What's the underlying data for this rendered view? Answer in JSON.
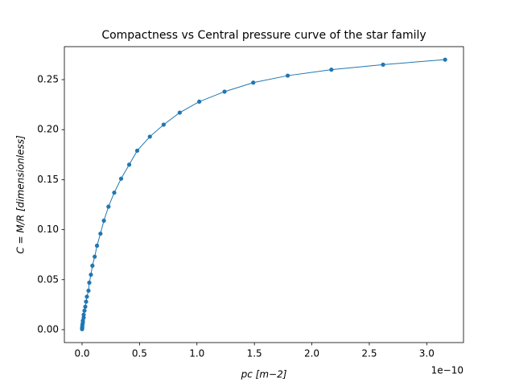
{
  "chart_data": {
    "type": "line",
    "title": "Compactness vs Central pressure curve of the star family",
    "xlabel": "pc [m−2]",
    "ylabel": "C = M/R [dimensionless]",
    "x_offset_label": "1e−10",
    "series": [
      {
        "color": "#1f77b4",
        "marker": "circle",
        "x": [
          2e-14,
          5e-14,
          1e-13,
          2e-13,
          3e-13,
          7e-13,
          7e-13,
          1.4e-12,
          1.4e-12,
          2.1e-12,
          2.8e-12,
          3.5e-12,
          4.2e-12,
          5.6e-12,
          6.3e-12,
          7.7e-12,
          9e-12,
          1.1e-11,
          1.3e-11,
          1.6e-11,
          1.9e-11,
          2.3e-11,
          2.8e-11,
          3.4e-11,
          4.1e-11,
          4.8e-11,
          5.9e-11,
          7.1e-11,
          8.5e-11,
          1.02e-10,
          1.24e-10,
          1.49e-10,
          1.79e-10,
          2.17e-10,
          2.62e-10,
          3.16e-10
        ],
        "values": [
          0.0005,
          0.001,
          0.002,
          0.003,
          0.005,
          0.007,
          0.009,
          0.012,
          0.015,
          0.019,
          0.023,
          0.028,
          0.033,
          0.039,
          0.047,
          0.055,
          0.064,
          0.073,
          0.084,
          0.096,
          0.109,
          0.123,
          0.137,
          0.151,
          0.165,
          0.179,
          0.193,
          0.205,
          0.217,
          0.228,
          0.238,
          0.247,
          0.254,
          0.26,
          0.265,
          0.27
        ]
      }
    ],
    "xlim": [
      -1.54e-11,
      3.32e-10
    ],
    "ylim": [
      -0.0129,
      0.283
    ],
    "xticks": [
      {
        "value": 0,
        "label": "0.0"
      },
      {
        "value": 5e-11,
        "label": "0.5"
      },
      {
        "value": 1e-10,
        "label": "1.0"
      },
      {
        "value": 1.5e-10,
        "label": "1.5"
      },
      {
        "value": 2e-10,
        "label": "2.0"
      },
      {
        "value": 2.5e-10,
        "label": "2.5"
      },
      {
        "value": 3e-10,
        "label": "3.0"
      }
    ],
    "yticks": [
      {
        "value": 0,
        "label": "0.00"
      },
      {
        "value": 0.05,
        "label": "0.05"
      },
      {
        "value": 0.1,
        "label": "0.10"
      },
      {
        "value": 0.15,
        "label": "0.15"
      },
      {
        "value": 0.2,
        "label": "0.20"
      },
      {
        "value": 0.25,
        "label": "0.25"
      }
    ]
  }
}
